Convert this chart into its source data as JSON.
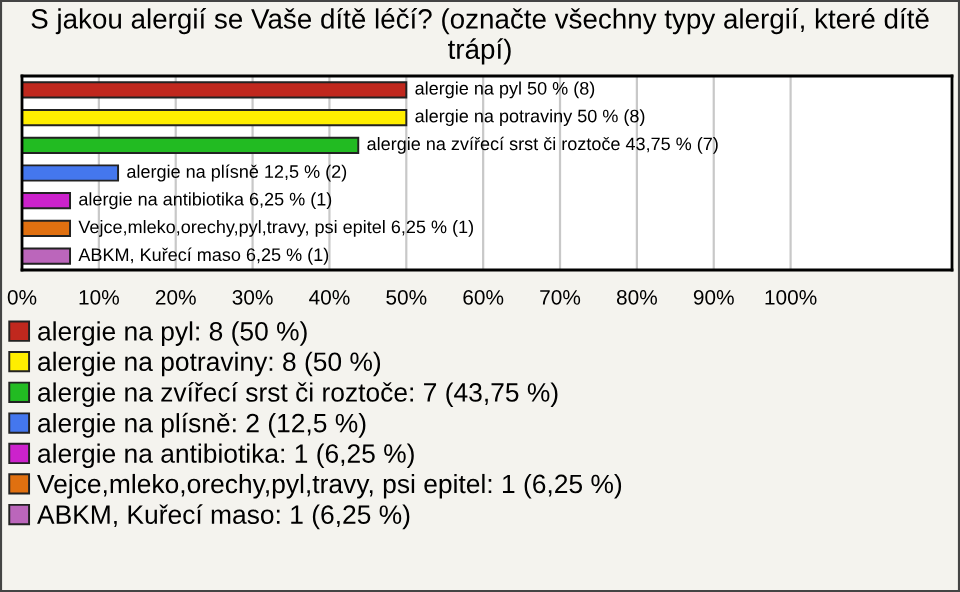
{
  "chart_data": {
    "type": "bar",
    "orientation": "horizontal",
    "title": "S jakou alergií se Vaše dítě léčí? (označte všechny typy alergií, které dítě trápí)",
    "categories": [
      null,
      null,
      null,
      null,
      null,
      null,
      null
    ],
    "series": [
      {
        "name": "alergie na pyl: 8 (50 %)",
        "color": "#c0281e",
        "values": [
          50,
          null,
          null,
          null,
          null,
          null,
          null
        ],
        "value_labels": [
          "alergie na pyl 50 % (8)",
          null,
          null,
          null,
          null,
          null,
          null
        ]
      },
      {
        "name": "alergie na potraviny: 8 (50 %)",
        "color": "#ffee00",
        "values": [
          null,
          50,
          null,
          null,
          null,
          null,
          null
        ],
        "value_labels": [
          null,
          "alergie na potraviny 50 % (8)",
          null,
          null,
          null,
          null,
          null
        ]
      },
      {
        "name": "alergie na zvířecí srst či roztoče: 7 (43,75 %)",
        "color": "#22bb22",
        "values": [
          null,
          null,
          43.75,
          null,
          null,
          null,
          null
        ],
        "value_labels": [
          null,
          null,
          "alergie na zvířecí srst či roztoče 43,75 % (7)",
          null,
          null,
          null,
          null
        ]
      },
      {
        "name": "alergie na plísně: 2 (12,5 %)",
        "color": "#4477ee",
        "values": [
          null,
          null,
          null,
          12.5,
          null,
          null,
          null
        ],
        "value_labels": [
          null,
          null,
          null,
          "alergie na plísně 12,5 % (2)",
          null,
          null,
          null
        ]
      },
      {
        "name": "alergie na antibiotika: 1 (6,25 %)",
        "color": "#cc22cc",
        "values": [
          null,
          null,
          null,
          null,
          6.25,
          null,
          null
        ],
        "value_labels": [
          null,
          null,
          null,
          null,
          "alergie na antibiotika 6,25 % (1)",
          null,
          null
        ]
      },
      {
        "name": "Vejce,mleko,orechy,pyl,travy, psi epitel: 1 (6,25 %)",
        "color": "#e07010",
        "values": [
          null,
          null,
          null,
          null,
          null,
          6.25,
          null
        ],
        "value_labels": [
          null,
          null,
          null,
          null,
          null,
          "Vejce,mleko,orechy,pyl,travy, psi epitel 6,25 % (1)",
          null
        ]
      },
      {
        "name": "ABKM, Kuřecí maso: 1 (6,25 %)",
        "color": "#bb66bb",
        "values": [
          null,
          null,
          null,
          null,
          null,
          null,
          6.25
        ],
        "value_labels": [
          null,
          null,
          null,
          null,
          null,
          null,
          "ABKM, Kuřecí maso 6,25 % (1)"
        ]
      }
    ],
    "xlim": [
      0,
      121
    ],
    "xticks": [
      {
        "value": 0,
        "label": "0%"
      },
      {
        "value": 10,
        "label": "10%"
      },
      {
        "value": 20,
        "label": "20%"
      },
      {
        "value": 30,
        "label": "30%"
      },
      {
        "value": 40,
        "label": "40%"
      },
      {
        "value": 50,
        "label": "50%"
      },
      {
        "value": 60,
        "label": "60%"
      },
      {
        "value": 70,
        "label": "70%"
      },
      {
        "value": 80,
        "label": "80%"
      },
      {
        "value": 90,
        "label": "90%"
      },
      {
        "value": 100,
        "label": "100%"
      }
    ],
    "grid": "x",
    "legend": "bottom"
  }
}
